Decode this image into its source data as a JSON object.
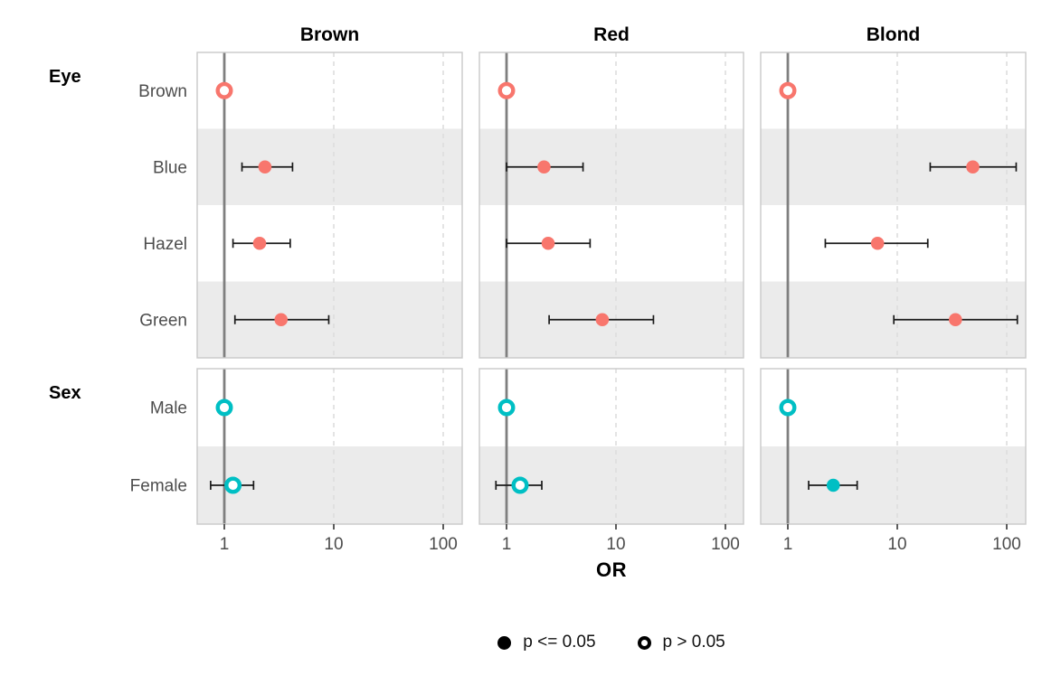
{
  "chart_data": {
    "type": "scatter",
    "subtype": "forest-plot",
    "title": "",
    "xlabel": "OR",
    "x_scale": "log10",
    "x_domain": [
      0.57,
      148
    ],
    "x_ticks": [
      1,
      10,
      100
    ],
    "x_tick_labels": [
      "1",
      "10",
      "100"
    ],
    "reference_line": 1,
    "grid": "dashed-major",
    "facet_columns": [
      "Brown",
      "Red",
      "Blond"
    ],
    "row_groups": [
      {
        "label": "Eye",
        "categories": [
          "Brown",
          "Blue",
          "Hazel",
          "Green"
        ]
      },
      {
        "label": "Sex",
        "categories": [
          "Male",
          "Female"
        ]
      }
    ],
    "series_colors": {
      "Eye": "#F8766D",
      "Sex": "#00BFC4"
    },
    "legend": {
      "filled_label": "p <= 0.05",
      "open_label": "p > 0.05"
    },
    "points": [
      {
        "facet": "Brown",
        "group": "Eye",
        "category": "Brown",
        "or": 1.0,
        "ci_low": null,
        "ci_high": null,
        "significant": false
      },
      {
        "facet": "Brown",
        "group": "Eye",
        "category": "Blue",
        "or": 2.35,
        "ci_low": 1.45,
        "ci_high": 4.2,
        "significant": true
      },
      {
        "facet": "Brown",
        "group": "Eye",
        "category": "Hazel",
        "or": 2.1,
        "ci_low": 1.2,
        "ci_high": 4.0,
        "significant": true
      },
      {
        "facet": "Brown",
        "group": "Eye",
        "category": "Green",
        "or": 3.3,
        "ci_low": 1.25,
        "ci_high": 9.0,
        "significant": true
      },
      {
        "facet": "Brown",
        "group": "Sex",
        "category": "Male",
        "or": 1.0,
        "ci_low": null,
        "ci_high": null,
        "significant": false
      },
      {
        "facet": "Brown",
        "group": "Sex",
        "category": "Female",
        "or": 1.2,
        "ci_low": 0.75,
        "ci_high": 1.85,
        "significant": false
      },
      {
        "facet": "Red",
        "group": "Eye",
        "category": "Brown",
        "or": 1.0,
        "ci_low": null,
        "ci_high": null,
        "significant": false
      },
      {
        "facet": "Red",
        "group": "Eye",
        "category": "Blue",
        "or": 2.2,
        "ci_low": 1.0,
        "ci_high": 5.0,
        "significant": true
      },
      {
        "facet": "Red",
        "group": "Eye",
        "category": "Hazel",
        "or": 2.4,
        "ci_low": 1.0,
        "ci_high": 5.8,
        "significant": true
      },
      {
        "facet": "Red",
        "group": "Eye",
        "category": "Green",
        "or": 7.5,
        "ci_low": 2.45,
        "ci_high": 22,
        "significant": true
      },
      {
        "facet": "Red",
        "group": "Sex",
        "category": "Male",
        "or": 1.0,
        "ci_low": null,
        "ci_high": null,
        "significant": false
      },
      {
        "facet": "Red",
        "group": "Sex",
        "category": "Female",
        "or": 1.33,
        "ci_low": 0.8,
        "ci_high": 2.1,
        "significant": false
      },
      {
        "facet": "Blond",
        "group": "Eye",
        "category": "Brown",
        "or": 1.0,
        "ci_low": null,
        "ci_high": null,
        "significant": false
      },
      {
        "facet": "Blond",
        "group": "Eye",
        "category": "Blue",
        "or": 49,
        "ci_low": 20,
        "ci_high": 122,
        "significant": true
      },
      {
        "facet": "Blond",
        "group": "Eye",
        "category": "Hazel",
        "or": 6.6,
        "ci_low": 2.2,
        "ci_high": 19,
        "significant": true
      },
      {
        "facet": "Blond",
        "group": "Eye",
        "category": "Green",
        "or": 34,
        "ci_low": 9.3,
        "ci_high": 125,
        "significant": true
      },
      {
        "facet": "Blond",
        "group": "Sex",
        "category": "Male",
        "or": 1.0,
        "ci_low": null,
        "ci_high": null,
        "significant": false
      },
      {
        "facet": "Blond",
        "group": "Sex",
        "category": "Female",
        "or": 2.6,
        "ci_low": 1.55,
        "ci_high": 4.3,
        "significant": true
      }
    ]
  }
}
